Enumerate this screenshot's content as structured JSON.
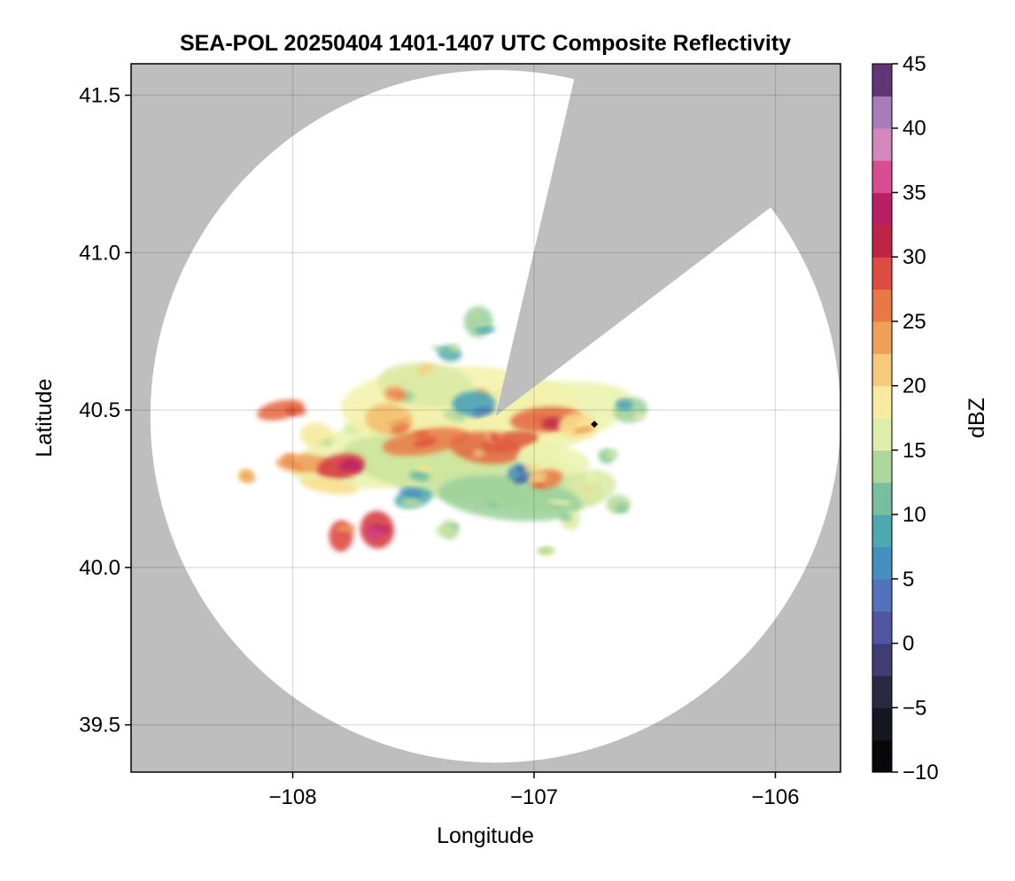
{
  "chart_data": {
    "type": "heatmap",
    "title": "SEA-POL 20250404 1401-1407 UTC Composite Reflectivity",
    "xlabel": "Longitude",
    "ylabel": "Latitude",
    "xlim": [
      -108.67,
      -105.73
    ],
    "ylim": [
      39.35,
      41.6
    ],
    "xticks": [
      -108,
      -107,
      -106
    ],
    "xtick_labels": [
      "−108",
      "−107",
      "−106"
    ],
    "yticks": [
      39.5,
      40.0,
      40.5,
      41.0,
      41.5
    ],
    "ytick_labels": [
      "39.5",
      "40.0",
      "40.5",
      "41.0",
      "41.5"
    ],
    "grid": true,
    "background_color": "#bebebe",
    "radar": {
      "center": [
        -107.16,
        40.48
      ],
      "range_deg_lon": 1.43,
      "range_deg_lat": 1.1,
      "blocked_sector": {
        "from_point": [
          -106.84,
          41.53
        ],
        "to_point": [
          -106.06,
          41.12
        ]
      },
      "site_marker": [
        -106.75,
        40.455
      ]
    },
    "colorbar": {
      "label": "dBZ",
      "min": -10,
      "max": 45,
      "step": 2.5,
      "ticks": [
        -10,
        -5,
        0,
        5,
        10,
        15,
        20,
        25,
        30,
        35,
        40,
        45
      ],
      "tick_labels": [
        "−10",
        "−5",
        "0",
        "5",
        "10",
        "15",
        "20",
        "25",
        "30",
        "35",
        "40",
        "45"
      ],
      "colormap_stops": [
        {
          "v": -10,
          "c": "#000000"
        },
        {
          "v": -5,
          "c": "#1e1e2e"
        },
        {
          "v": -2.5,
          "c": "#333452"
        },
        {
          "v": 0,
          "c": "#4a4590"
        },
        {
          "v": 2.5,
          "c": "#5a64b3"
        },
        {
          "v": 5,
          "c": "#4a82bf"
        },
        {
          "v": 7.5,
          "c": "#3d9cbc"
        },
        {
          "v": 10,
          "c": "#5cb3a3"
        },
        {
          "v": 12.5,
          "c": "#8fcb9b"
        },
        {
          "v": 15,
          "c": "#c9e49b"
        },
        {
          "v": 17.5,
          "c": "#f3f6b2"
        },
        {
          "v": 20,
          "c": "#f8df8d"
        },
        {
          "v": 22.5,
          "c": "#f2b466"
        },
        {
          "v": 25,
          "c": "#ed8e4c"
        },
        {
          "v": 27.5,
          "c": "#e3613f"
        },
        {
          "v": 30,
          "c": "#d5383f"
        },
        {
          "v": 32.5,
          "c": "#a8104a"
        },
        {
          "v": 35,
          "c": "#cc2c7e"
        },
        {
          "v": 37.5,
          "c": "#e26fa8"
        },
        {
          "v": 40,
          "c": "#c69ed0"
        },
        {
          "v": 42.5,
          "c": "#8a5aa6"
        },
        {
          "v": 45,
          "c": "#3a0f48"
        }
      ]
    },
    "echo_cells": [
      {
        "lon": -107.3,
        "lat": 40.42,
        "rlon": 0.72,
        "rlat": 0.13,
        "dbz": 17
      },
      {
        "lon": -107.3,
        "lat": 40.5,
        "rlon": 0.5,
        "rlat": 0.14,
        "dbz": 18
      },
      {
        "lon": -107.45,
        "lat": 40.58,
        "rlon": 0.2,
        "rlat": 0.07,
        "dbz": 16
      },
      {
        "lon": -107.25,
        "lat": 40.3,
        "rlon": 0.55,
        "rlat": 0.1,
        "dbz": 15
      },
      {
        "lon": -107.1,
        "lat": 40.22,
        "rlon": 0.3,
        "rlat": 0.07,
        "dbz": 13
      },
      {
        "lon": -107.45,
        "lat": 40.4,
        "rlon": 0.18,
        "rlat": 0.04,
        "dbz": 26
      },
      {
        "lon": -107.2,
        "lat": 40.38,
        "rlon": 0.15,
        "rlat": 0.05,
        "dbz": 27
      },
      {
        "lon": -107.6,
        "lat": 40.47,
        "rlon": 0.1,
        "rlat": 0.05,
        "dbz": 22
      },
      {
        "lon": -107.1,
        "lat": 40.4,
        "rlon": 0.12,
        "rlat": 0.03,
        "dbz": 28
      },
      {
        "lon": -107.25,
        "lat": 40.52,
        "rlon": 0.09,
        "rlat": 0.04,
        "dbz": 8
      },
      {
        "lon": -107.05,
        "lat": 40.3,
        "rlon": 0.06,
        "rlat": 0.03,
        "dbz": 6
      },
      {
        "lon": -107.5,
        "lat": 40.22,
        "rlon": 0.08,
        "rlat": 0.03,
        "dbz": 9
      },
      {
        "lon": -106.95,
        "lat": 40.47,
        "rlon": 0.15,
        "rlat": 0.04,
        "dbz": 27
      },
      {
        "lon": -106.82,
        "lat": 40.45,
        "rlon": 0.08,
        "rlat": 0.04,
        "dbz": 20
      },
      {
        "lon": -106.92,
        "lat": 40.34,
        "rlon": 0.15,
        "rlat": 0.05,
        "dbz": 17
      },
      {
        "lon": -106.75,
        "lat": 40.26,
        "rlon": 0.09,
        "rlat": 0.05,
        "dbz": 16
      },
      {
        "lon": -106.95,
        "lat": 40.28,
        "rlon": 0.07,
        "rlat": 0.03,
        "dbz": 26
      },
      {
        "lon": -108.05,
        "lat": 40.5,
        "rlon": 0.1,
        "rlat": 0.03,
        "dbz": 27
      },
      {
        "lon": -107.95,
        "lat": 40.33,
        "rlon": 0.12,
        "rlat": 0.03,
        "dbz": 24
      },
      {
        "lon": -107.8,
        "lat": 40.32,
        "rlon": 0.1,
        "rlat": 0.04,
        "dbz": 30
      },
      {
        "lon": -107.9,
        "lat": 40.42,
        "rlon": 0.07,
        "rlat": 0.04,
        "dbz": 19
      },
      {
        "lon": -107.85,
        "lat": 40.26,
        "rlon": 0.12,
        "rlat": 0.025,
        "dbz": 20
      },
      {
        "lon": -107.65,
        "lat": 40.12,
        "rlon": 0.07,
        "rlat": 0.06,
        "dbz": 30
      },
      {
        "lon": -107.8,
        "lat": 40.1,
        "rlon": 0.05,
        "rlat": 0.05,
        "dbz": 29
      },
      {
        "lon": -107.23,
        "lat": 40.78,
        "rlon": 0.06,
        "rlat": 0.05,
        "dbz": 13
      },
      {
        "lon": -107.35,
        "lat": 40.68,
        "rlon": 0.05,
        "rlat": 0.025,
        "dbz": 9
      },
      {
        "lon": -107.58,
        "lat": 40.55,
        "rlon": 0.04,
        "rlat": 0.03,
        "dbz": 22
      },
      {
        "lon": -108.2,
        "lat": 40.29,
        "rlon": 0.03,
        "rlat": 0.02,
        "dbz": 20
      },
      {
        "lon": -106.6,
        "lat": 40.5,
        "rlon": 0.07,
        "rlat": 0.04,
        "dbz": 13
      },
      {
        "lon": -106.65,
        "lat": 40.2,
        "rlon": 0.05,
        "rlat": 0.03,
        "dbz": 14
      },
      {
        "lon": -106.85,
        "lat": 40.15,
        "rlon": 0.04,
        "rlat": 0.03,
        "dbz": 16
      },
      {
        "lon": -106.95,
        "lat": 40.05,
        "rlon": 0.03,
        "rlat": 0.02,
        "dbz": 18
      },
      {
        "lon": -107.35,
        "lat": 40.12,
        "rlon": 0.04,
        "rlat": 0.03,
        "dbz": 14
      },
      {
        "lon": -106.7,
        "lat": 40.35,
        "rlon": 0.03,
        "rlat": 0.02,
        "dbz": 12
      }
    ]
  }
}
